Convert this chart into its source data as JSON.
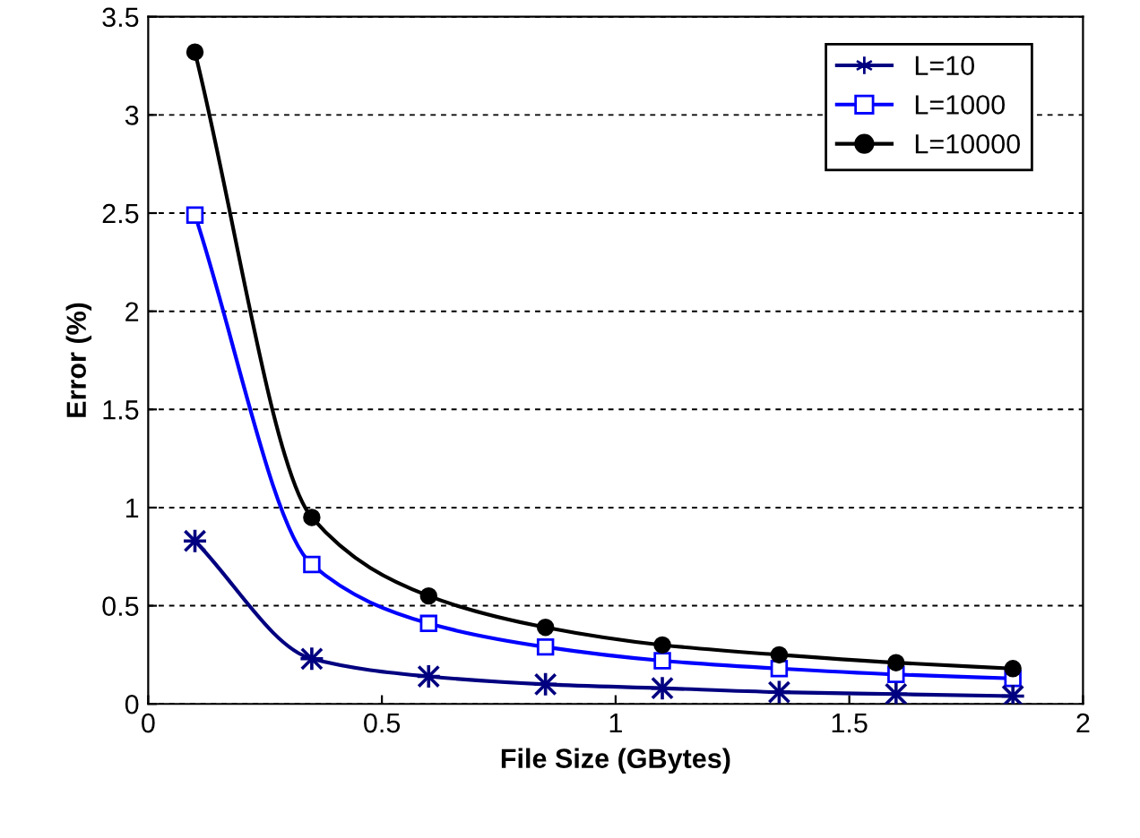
{
  "chart_data": {
    "type": "line",
    "xlabel": "File Size (GBytes)",
    "ylabel": "Error (%)",
    "x": [
      0.1,
      0.35,
      0.6,
      0.85,
      1.1,
      1.35,
      1.6,
      1.85
    ],
    "series": [
      {
        "name": "L=10",
        "color": "#000080",
        "marker": "cross",
        "values": [
          0.83,
          0.23,
          0.14,
          0.1,
          0.08,
          0.06,
          0.05,
          0.04
        ]
      },
      {
        "name": "L=1000",
        "color": "#0000ff",
        "marker": "square",
        "values": [
          2.49,
          0.71,
          0.41,
          0.29,
          0.22,
          0.18,
          0.15,
          0.13
        ]
      },
      {
        "name": "L=10000",
        "color": "#000000",
        "marker": "circle",
        "values": [
          3.32,
          0.95,
          0.55,
          0.39,
          0.3,
          0.25,
          0.21,
          0.18
        ]
      }
    ],
    "xlim": [
      0,
      2
    ],
    "xticks": [
      0,
      0.5,
      1,
      1.5,
      2
    ],
    "ylim": [
      0,
      3.5
    ],
    "yticks": [
      0,
      0.5,
      1,
      1.5,
      2,
      2.5,
      3,
      3.5
    ],
    "grid": "y",
    "legend": "top right",
    "line_style": "solid"
  }
}
